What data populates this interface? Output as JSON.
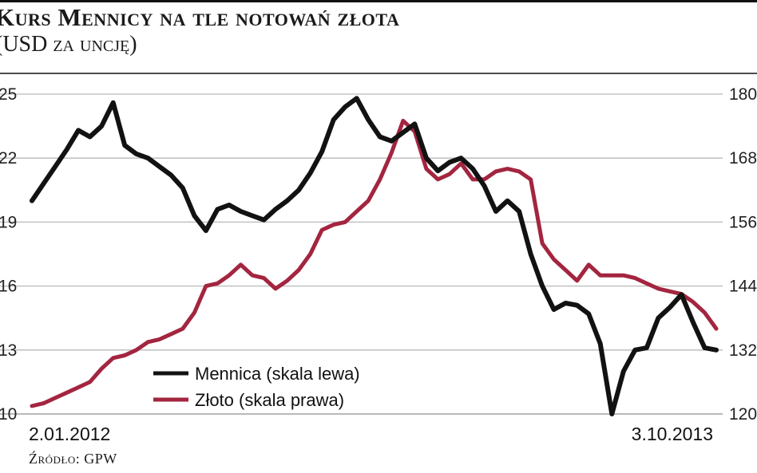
{
  "header": {
    "title": "Kurs Mennicy na tle notowań złota",
    "subtitle": "(USD za uncję)"
  },
  "source": "Źródło: GPW",
  "chart_data": {
    "type": "line",
    "title": "Kurs Mennicy na tle notowań złota",
    "subtitle": "(USD za uncję)",
    "x_start_label": "2.01.2012",
    "x_end_label": "3.10.2013",
    "left_axis": {
      "ticks": [
        10,
        13,
        16,
        19,
        22,
        25
      ],
      "ylim": [
        10,
        25
      ]
    },
    "right_axis": {
      "ticks": [
        120,
        132,
        144,
        156,
        168,
        180
      ],
      "ylim": [
        120,
        180
      ]
    },
    "grid": true,
    "legend_position": "bottom-left",
    "colors": {
      "mennica": "#121212",
      "zloto": "#a3253f",
      "grid": "#b9b9b9"
    },
    "series": [
      {
        "name": "Mennica (skala lewa)",
        "axis": "left",
        "values": [
          20.0,
          20.8,
          21.6,
          22.4,
          23.3,
          23.0,
          23.5,
          24.6,
          22.6,
          22.2,
          22.0,
          21.6,
          21.2,
          20.6,
          19.3,
          18.6,
          19.6,
          19.8,
          19.5,
          19.3,
          19.1,
          19.6,
          20.0,
          20.5,
          21.3,
          22.3,
          23.8,
          24.4,
          24.8,
          23.8,
          23.0,
          22.8,
          23.2,
          23.6,
          22.0,
          21.4,
          21.8,
          22.0,
          21.5,
          20.7,
          19.5,
          20.0,
          19.5,
          17.5,
          16.0,
          14.9,
          15.2,
          15.1,
          14.7,
          13.3,
          10.0,
          12.0,
          13.0,
          13.1,
          14.5,
          15.0,
          15.6,
          14.3,
          13.1,
          13.0
        ]
      },
      {
        "name": "Złoto (skala prawa)",
        "axis": "right",
        "values": [
          121.5,
          122.0,
          123.0,
          124.0,
          125.0,
          126.0,
          128.5,
          130.5,
          131.0,
          132.0,
          133.5,
          134.0,
          135.0,
          136.0,
          139.0,
          144.0,
          144.5,
          146.0,
          148.0,
          146.0,
          145.5,
          143.5,
          145.0,
          147.0,
          150.0,
          154.5,
          155.5,
          156.0,
          158.0,
          160.0,
          164.0,
          169.0,
          175.0,
          173.0,
          166.0,
          164.0,
          165.0,
          167.0,
          164.0,
          164.0,
          165.5,
          166.0,
          165.5,
          164.0,
          152.0,
          149.0,
          147.0,
          145.0,
          148.0,
          146.0,
          146.0,
          146.0,
          145.5,
          144.5,
          143.5,
          143.0,
          142.5,
          141.0,
          139.0,
          136.0
        ]
      }
    ]
  }
}
